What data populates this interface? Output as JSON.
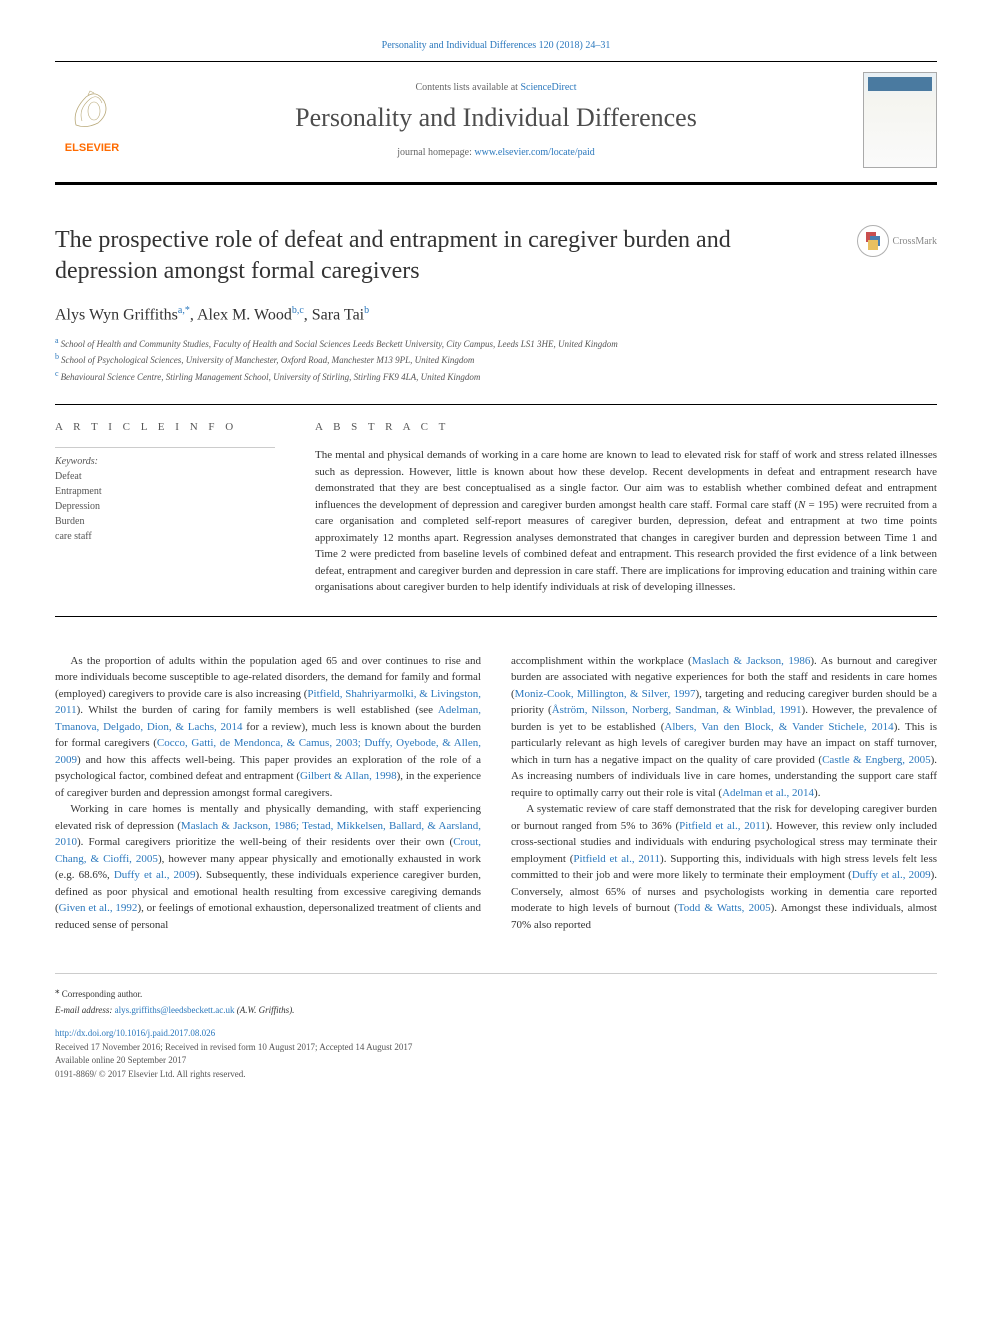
{
  "header": {
    "top_citation": "Personality and Individual Differences 120 (2018) 24–31",
    "contents_line_prefix": "Contents lists available at ",
    "contents_line_link": "ScienceDirect",
    "journal_name": "Personality and Individual Differences",
    "homepage_prefix": "journal homepage: ",
    "homepage_link": "www.elsevier.com/locate/paid",
    "elsevier_label": "ELSEVIER"
  },
  "crossmark": {
    "label": "CrossMark"
  },
  "article": {
    "title": "The prospective role of defeat and entrapment in caregiver burden and depression amongst formal caregivers",
    "authors_html": "Alys Wyn Griffiths<sup class='sup'>a,*</sup>, Alex M. Wood<sup class='sup'>b,c</sup>, Sara Tai<sup class='sup'>b</sup>",
    "affiliations": [
      {
        "marker": "a",
        "text": "School of Health and Community Studies, Faculty of Health and Social Sciences Leeds Beckett University, City Campus, Leeds LS1 3HE, United Kingdom"
      },
      {
        "marker": "b",
        "text": "School of Psychological Sciences, University of Manchester, Oxford Road, Manchester M13 9PL, United Kingdom"
      },
      {
        "marker": "c",
        "text": "Behavioural Science Centre, Stirling Management School, University of Stirling, Stirling FK9 4LA, United Kingdom"
      }
    ]
  },
  "info": {
    "heading": "A R T I C L E  I N F O",
    "keywords_label": "Keywords:",
    "keywords": [
      "Defeat",
      "Entrapment",
      "Depression",
      "Burden",
      "care staff"
    ]
  },
  "abstract": {
    "heading": "A B S T R A C T",
    "text": "The mental and physical demands of working in a care home are known to lead to elevated risk for staff of work and stress related illnesses such as depression. However, little is known about how these develop. Recent developments in defeat and entrapment research have demonstrated that they are best conceptualised as a single factor. Our aim was to establish whether combined defeat and entrapment influences the development of depression and caregiver burden amongst health care staff. Formal care staff (N = 195) were recruited from a care organisation and completed self-report measures of caregiver burden, depression, defeat and entrapment at two time points approximately 12 months apart. Regression analyses demonstrated that changes in caregiver burden and depression between Time 1 and Time 2 were predicted from baseline levels of combined defeat and entrapment. This research provided the first evidence of a link between defeat, entrapment and caregiver burden and depression in care staff. There are implications for improving education and training within care organisations about caregiver burden to help identify individuals at risk of developing illnesses."
  },
  "body": {
    "p1_pre": "As the proportion of adults within the population aged 65 and over continues to rise and more individuals become susceptible to age-related disorders, the demand for family and formal (employed) caregivers to provide care is also increasing (",
    "p1_c1": "Pitfield, Shahriyarmolki, & Livingston, 2011",
    "p1_m1": "). Whilst the burden of caring for family members is well established (see ",
    "p1_c2": "Adelman, Tmanova, Delgado, Dion, & Lachs, 2014",
    "p1_m2": " for a review), much less is known about the burden for formal caregivers (",
    "p1_c3": "Cocco, Gatti, de Mendonca, & Camus, 2003; Duffy, Oyebode, & Allen, 2009",
    "p1_m3": ") and how this affects well-being. This paper provides an exploration of the role of a psychological factor, combined defeat and entrapment (",
    "p1_c4": "Gilbert & Allan, 1998",
    "p1_m4": "), in the experience of caregiver burden and depression amongst formal caregivers.",
    "p2_pre": "Working in care homes is mentally and physically demanding, with staff experiencing elevated risk of depression (",
    "p2_c1": "Maslach & Jackson, 1986; Testad, Mikkelsen, Ballard, & Aarsland, 2010",
    "p2_m1": "). Formal caregivers prioritize the well-being of their residents over their own (",
    "p2_c2": "Crout, Chang, & Cioffi, 2005",
    "p2_m2": "), however many appear physically and emotionally exhausted in work (e.g. 68.6%, ",
    "p2_c3": "Duffy et al., 2009",
    "p2_m3": "). Subsequently, these individuals experience caregiver burden, defined as poor physical and emotional health resulting from excessive caregiving demands (",
    "p2_c4": "Given et al., 1992",
    "p2_m4": "), or feelings of emotional exhaustion, depersonalized treatment of clients and reduced sense of personal",
    "p3_pre": "accomplishment within the workplace (",
    "p3_c1": "Maslach & Jackson, 1986",
    "p3_m1": "). As burnout and caregiver burden are associated with negative experiences for both the staff and residents in care homes (",
    "p3_c2": "Moniz-Cook, Millington, & Silver, 1997",
    "p3_m2": "), targeting and reducing caregiver burden should be a priority (",
    "p3_c3": "Åström, Nilsson, Norberg, Sandman, & Winblad, 1991",
    "p3_m3": "). However, the prevalence of burden is yet to be established (",
    "p3_c4": "Albers, Van den Block, & Vander Stichele, 2014",
    "p3_m4": "). This is particularly relevant as high levels of caregiver burden may have an impact on staff turnover, which in turn has a negative impact on the quality of care provided (",
    "p3_c5": "Castle & Engberg, 2005",
    "p3_m5": "). As increasing numbers of individuals live in care homes, understanding the support care staff require to optimally carry out their role is vital (",
    "p3_c6": "Adelman et al., 2014",
    "p3_m6": ").",
    "p4_pre": "A systematic review of care staff demonstrated that the risk for developing caregiver burden or burnout ranged from 5% to 36% (",
    "p4_c1": "Pitfield et al., 2011",
    "p4_m1": "). However, this review only included cross-sectional studies and individuals with enduring psychological stress may terminate their employment (",
    "p4_c2": "Pitfield et al., 2011",
    "p4_m2": "). Supporting this, individuals with high stress levels felt less committed to their job and were more likely to terminate their employment (",
    "p4_c3": "Duffy et al., 2009",
    "p4_m3": "). Conversely, almost 65% of nurses and psychologists working in dementia care reported moderate to high levels of burnout (",
    "p4_c4": "Todd & Watts, 2005",
    "p4_m4": "). Amongst these individuals, almost 70% also reported"
  },
  "footer": {
    "corr": "Corresponding author.",
    "email_label": "E-mail address: ",
    "email": "alys.griffiths@leedsbeckett.ac.uk",
    "email_suffix": " (A.W. Griffiths).",
    "doi": "http://dx.doi.org/10.1016/j.paid.2017.08.026",
    "dates": "Received 17 November 2016; Received in revised form 10 August 2017; Accepted 14 August 2017",
    "online": "Available online 20 September 2017",
    "copyright": "0191-8869/ © 2017 Elsevier Ltd. All rights reserved."
  },
  "colors": {
    "link": "#2b78bd",
    "text": "#333333",
    "rule": "#000000",
    "elsevier_orange": "#ff6b00"
  }
}
